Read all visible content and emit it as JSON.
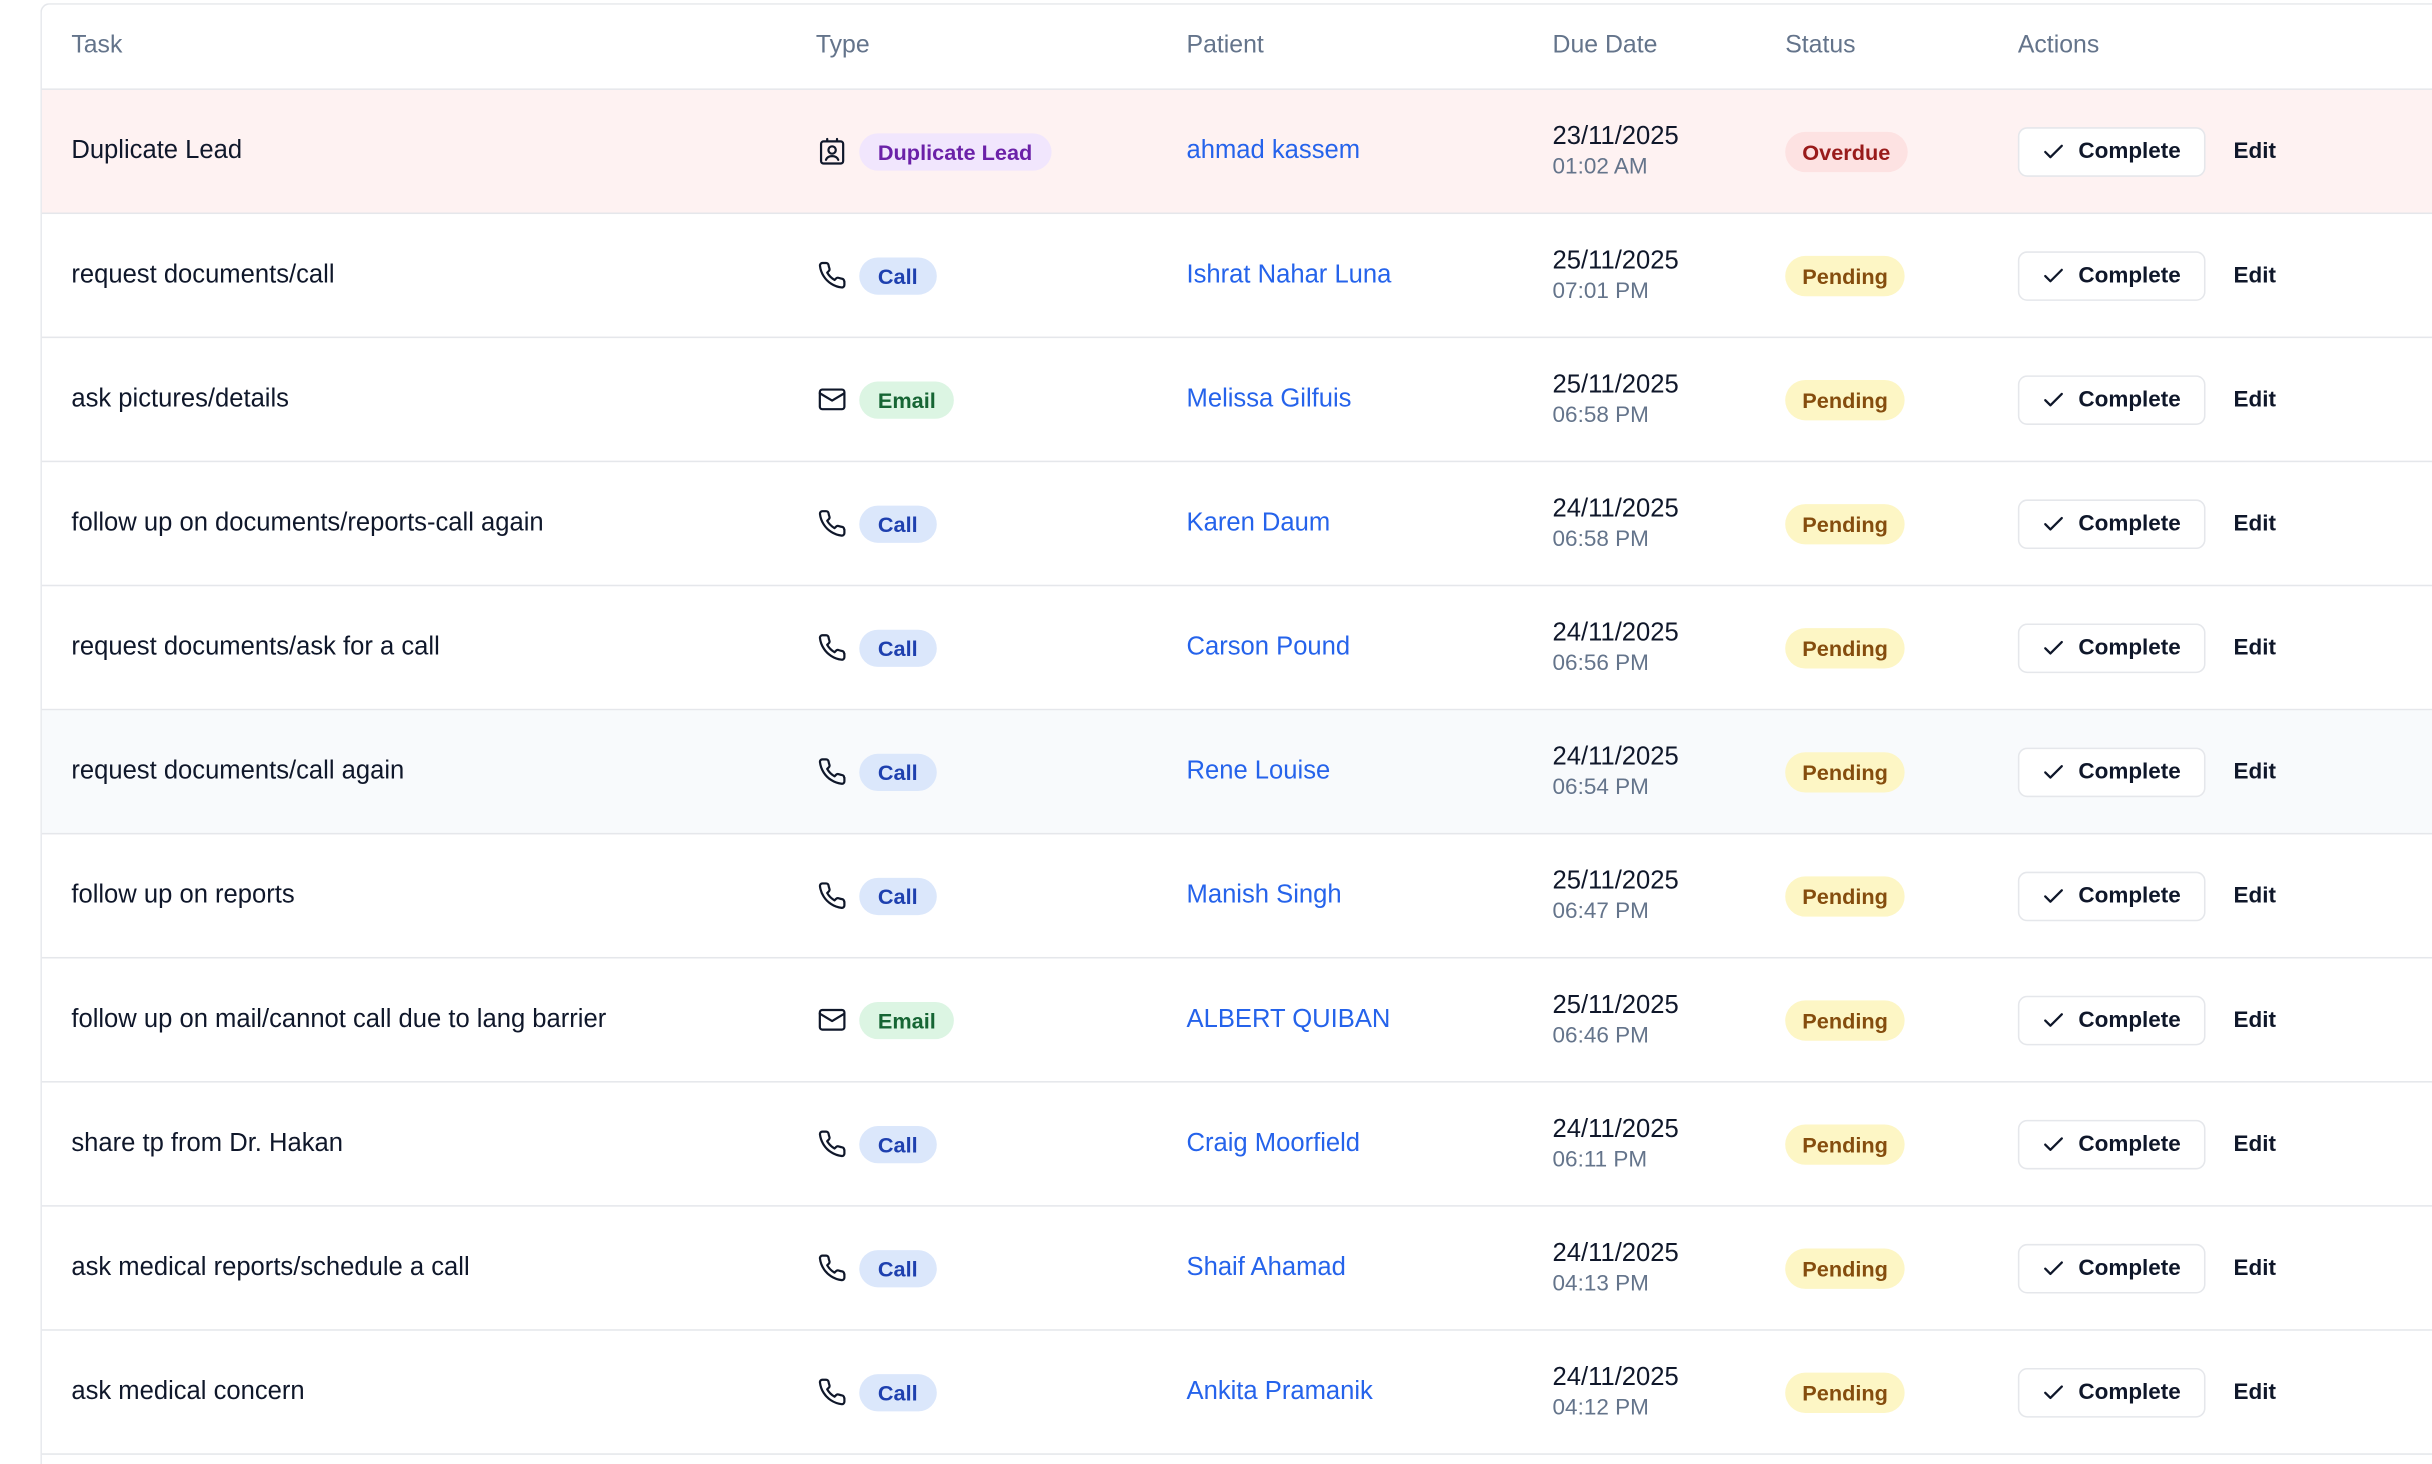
{
  "table": {
    "headers": {
      "task": "Task",
      "type": "Type",
      "patient": "Patient",
      "due_date": "Due Date",
      "status": "Status",
      "actions": "Actions"
    },
    "complete_label": "Complete",
    "edit_label": "Edit",
    "rows": [
      {
        "task": "Duplicate Lead",
        "type": "Duplicate Lead",
        "type_icon": "contact-icon",
        "patient": "ahmad kassem",
        "date": "23/11/2025",
        "time": "01:02 AM",
        "status": "Overdue"
      },
      {
        "task": "request documents/call",
        "type": "Call",
        "type_icon": "phone-icon",
        "patient": "Ishrat Nahar Luna",
        "date": "25/11/2025",
        "time": "07:01 PM",
        "status": "Pending"
      },
      {
        "task": "ask pictures/details",
        "type": "Email",
        "type_icon": "mail-icon",
        "patient": "Melissa Gilfuis",
        "date": "25/11/2025",
        "time": "06:58 PM",
        "status": "Pending"
      },
      {
        "task": "follow up on documents/reports-call again",
        "type": "Call",
        "type_icon": "phone-icon",
        "patient": "Karen Daum",
        "date": "24/11/2025",
        "time": "06:58 PM",
        "status": "Pending"
      },
      {
        "task": "request documents/ask for a call",
        "type": "Call",
        "type_icon": "phone-icon",
        "patient": "Carson Pound",
        "date": "24/11/2025",
        "time": "06:56 PM",
        "status": "Pending"
      },
      {
        "task": "request documents/call again",
        "type": "Call",
        "type_icon": "phone-icon",
        "patient": "Rene Louise",
        "date": "24/11/2025",
        "time": "06:54 PM",
        "status": "Pending"
      },
      {
        "task": "follow up on reports",
        "type": "Call",
        "type_icon": "phone-icon",
        "patient": "Manish Singh",
        "date": "25/11/2025",
        "time": "06:47 PM",
        "status": "Pending"
      },
      {
        "task": "follow up on mail/cannot call due to lang barrier",
        "type": "Email",
        "type_icon": "mail-icon",
        "patient": "ALBERT QUIBAN",
        "date": "25/11/2025",
        "time": "06:46 PM",
        "status": "Pending"
      },
      {
        "task": "share tp from Dr. Hakan",
        "type": "Call",
        "type_icon": "phone-icon",
        "patient": "Craig Moorfield",
        "date": "24/11/2025",
        "time": "06:11 PM",
        "status": "Pending"
      },
      {
        "task": "ask medical reports/schedule a call",
        "type": "Call",
        "type_icon": "phone-icon",
        "patient": "Shaif Ahamad",
        "date": "24/11/2025",
        "time": "04:13 PM",
        "status": "Pending"
      },
      {
        "task": "ask medical concern",
        "type": "Call",
        "type_icon": "phone-icon",
        "patient": "Ankita Pramanik",
        "date": "24/11/2025",
        "time": "04:12 PM",
        "status": "Pending"
      }
    ]
  },
  "colors": {
    "link": "#2563eb",
    "overdue_row_bg": "#fef2f2",
    "pending_badge_bg": "#fdf6c5",
    "overdue_badge_bg": "#fde2e2"
  }
}
